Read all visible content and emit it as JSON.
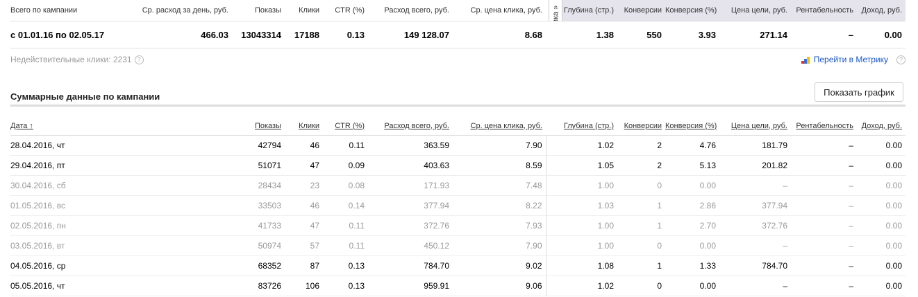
{
  "summary": {
    "headers": [
      "Всего по кампании",
      "Ср. расход за день, руб.",
      "Показы",
      "Клики",
      "CTR (%)",
      "Расход всего, руб.",
      "Ср. цена клика, руб.",
      "Глубина (стр.)",
      "Конверсии",
      "Конверсия (%)",
      "Цена цели, руб.",
      "Рентабельность",
      "Доход, руб."
    ],
    "values": [
      "с 01.01.16 по 02.05.17",
      "466.03",
      "13043314",
      "17188",
      "0.13",
      "149 128.07",
      "8.68",
      "1.38",
      "550",
      "3.93",
      "271.14",
      "–",
      "0.00"
    ],
    "metrika_tab": "Метрика »"
  },
  "invalid_clicks": "Недействительные клики: 2231",
  "help": "?",
  "metrika_link": "Перейти в Метрику",
  "metrika_logo_colors": [
    "#e8312f",
    "#3a6fd8",
    "#fcbf00"
  ],
  "section_title": "Суммарные данные по кампании",
  "show_chart_button": "Показать график",
  "table": {
    "headers": [
      "Дата ↑",
      "Показы",
      "Клики",
      "CTR (%)",
      "Расход всего, руб.",
      "Ср. цена клика, руб.",
      "Глубина (стр.)",
      "Конверсии",
      "Конверсия (%)",
      "Цена цели, руб.",
      "Рентабельность",
      "Доход, руб."
    ],
    "rows": [
      {
        "muted": false,
        "cells": [
          "28.04.2016, чт",
          "42794",
          "46",
          "0.11",
          "363.59",
          "7.90",
          "1.02",
          "2",
          "4.76",
          "181.79",
          "–",
          "0.00"
        ]
      },
      {
        "muted": false,
        "cells": [
          "29.04.2016, пт",
          "51071",
          "47",
          "0.09",
          "403.63",
          "8.59",
          "1.05",
          "2",
          "5.13",
          "201.82",
          "–",
          "0.00"
        ]
      },
      {
        "muted": true,
        "cells": [
          "30.04.2016, сб",
          "28434",
          "23",
          "0.08",
          "171.93",
          "7.48",
          "1.00",
          "0",
          "0.00",
          "–",
          "–",
          "0.00"
        ]
      },
      {
        "muted": true,
        "cells": [
          "01.05.2016, вс",
          "33503",
          "46",
          "0.14",
          "377.94",
          "8.22",
          "1.03",
          "1",
          "2.86",
          "377.94",
          "–",
          "0.00"
        ]
      },
      {
        "muted": true,
        "cells": [
          "02.05.2016, пн",
          "41733",
          "47",
          "0.11",
          "372.76",
          "7.93",
          "1.00",
          "1",
          "2.70",
          "372.76",
          "–",
          "0.00"
        ]
      },
      {
        "muted": true,
        "cells": [
          "03.05.2016, вт",
          "50974",
          "57",
          "0.11",
          "450.12",
          "7.90",
          "1.00",
          "0",
          "0.00",
          "–",
          "–",
          "0.00"
        ]
      },
      {
        "muted": false,
        "cells": [
          "04.05.2016, ср",
          "68352",
          "87",
          "0.13",
          "784.70",
          "9.02",
          "1.08",
          "1",
          "1.33",
          "784.70",
          "–",
          "0.00"
        ]
      },
      {
        "muted": false,
        "cells": [
          "05.05.2016, чт",
          "83726",
          "106",
          "0.13",
          "959.91",
          "9.06",
          "1.02",
          "0",
          "0.00",
          "–",
          "–",
          "0.00"
        ]
      }
    ]
  }
}
